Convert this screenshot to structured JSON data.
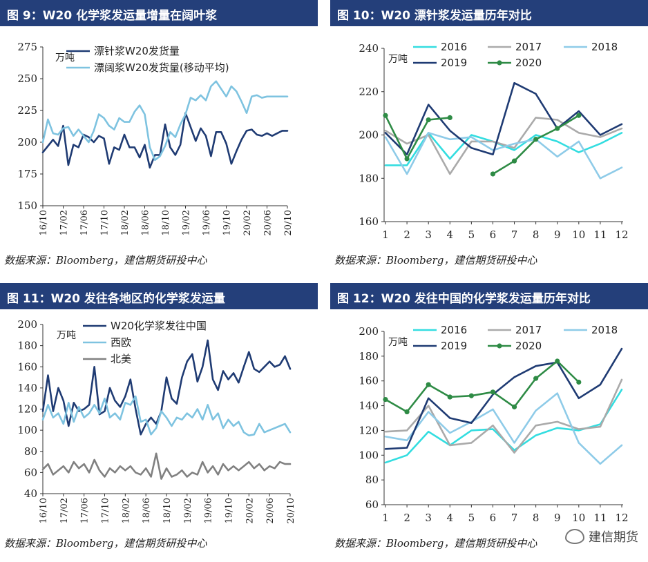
{
  "watermark": {
    "text": "建信期货",
    "icon": "wechat-icon"
  },
  "panels": [
    {
      "title": "图 9：W20 化学浆发运量增量在阔叶浆",
      "source": "数据来源：Bloomberg，建信期货研投中心",
      "chart_data": {
        "type": "line",
        "unit_label": "万吨",
        "ylim": [
          150,
          275
        ],
        "yticks": [
          150,
          175,
          200,
          225,
          250,
          275
        ],
        "x_tick_labels": [
          "16/10",
          "17/02",
          "17/06",
          "17/10",
          "18/02",
          "18/06",
          "18/10",
          "19/02",
          "19/06",
          "19/10",
          "20/02",
          "20/06",
          "20/10"
        ],
        "x_count": 49,
        "series": [
          {
            "name": "漂针浆W20发货量",
            "color": "#1f3b73",
            "values": [
              192,
              197,
              202,
              197,
              213,
              182,
              198,
              196,
              206,
              204,
              200,
              205,
              203,
              183,
              196,
              194,
              206,
              196,
              196,
              188,
              198,
              180,
              190,
              190,
              214,
              196,
              190,
              198,
              223,
              212,
              201,
              211,
              205,
              189,
              208,
              208,
              199,
              183,
              193,
              202,
              209,
              210,
              206,
              205,
              207,
              205,
              207,
              209,
              209
            ]
          },
          {
            "name": "漂阔浆W20发货量(移动平均)",
            "color": "#7ec3e0",
            "values": [
              200,
              218,
              207,
              206,
              211,
              212,
              205,
              210,
              205,
              200,
              209,
              222,
              219,
              213,
              210,
              219,
              216,
              216,
              224,
              229,
              222,
              196,
              186,
              189,
              197,
              208,
              204,
              214,
              222,
              235,
              233,
              237,
              233,
              244,
              248,
              242,
              236,
              244,
              240,
              232,
              223,
              236,
              237,
              235,
              236,
              236,
              236,
              236,
              236
            ]
          }
        ]
      }
    },
    {
      "title": "图 10：W20 漂针浆发运量历年对比",
      "source": "数据来源：Bloomberg，建信期货研投中心",
      "chart_data": {
        "type": "line",
        "unit_label": "万吨",
        "ylim": [
          160,
          240
        ],
        "yticks": [
          160,
          180,
          200,
          220,
          240
        ],
        "categories": [
          "1",
          "2",
          "3",
          "4",
          "5",
          "6",
          "7",
          "8",
          "9",
          "10",
          "11",
          "12"
        ],
        "series": [
          {
            "name": "2016",
            "color": "#33dde0",
            "values": [
              186,
              186,
              201,
              189,
              200,
              197,
              193,
              200,
              197,
              192,
              196,
              201
            ]
          },
          {
            "name": "2017",
            "color": "#aaaaaa",
            "values": [
              202,
              196,
              200,
              182,
              197,
              197,
              194,
              208,
              207,
              201,
              199,
              203
            ]
          },
          {
            "name": "2018",
            "color": "#8ecbe8",
            "values": [
              199,
              182,
              201,
              198,
              199,
              193,
              196,
              198,
              190,
              197,
              180,
              185
            ]
          },
          {
            "name": "2019",
            "color": "#1f3b73",
            "values": [
              201,
              191,
              214,
              202,
              194,
              191,
              224,
              219,
              203,
              211,
              200,
              205
            ]
          },
          {
            "name": "2020",
            "color": "#2e8b45",
            "values": [
              209,
              189,
              207,
              208,
              null,
              182,
              188,
              198,
              203,
              209,
              null,
              null
            ]
          }
        ]
      }
    },
    {
      "title": "图 11：W20 发往各地区的化学浆发运量",
      "source": "数据来源：Bloomberg，建信期货研投中心",
      "chart_data": {
        "type": "line",
        "unit_label": "万吨",
        "ylim": [
          40,
          200
        ],
        "yticks": [
          40,
          60,
          80,
          100,
          120,
          140,
          160,
          180,
          200
        ],
        "x_tick_labels": [
          "16/10",
          "17/02",
          "17/06",
          "17/10",
          "18/02",
          "18/06",
          "18/10",
          "19/02",
          "19/06",
          "19/10",
          "20/02",
          "20/06",
          "20/10"
        ],
        "x_count": 49,
        "series": [
          {
            "name": "W20化学浆发往中国",
            "color": "#1f3b73",
            "values": [
              118,
              152,
              118,
              140,
              128,
              104,
              126,
              118,
              120,
              124,
              160,
              115,
              118,
              140,
              128,
              122,
              132,
              148,
              120,
              96,
              106,
              112,
              106,
              118,
              150,
              130,
              125,
              150,
              165,
              172,
              146,
              160,
              185,
              148,
              138,
              156,
              148,
              154,
              145,
              160,
              174,
              158,
              155,
              160,
              165,
              160,
              162,
              170,
              158
            ]
          },
          {
            "name": "西欧",
            "color": "#7ec3e0",
            "values": [
              110,
              124,
              112,
              116,
              106,
              126,
              108,
              122,
              112,
              116,
              124,
              116,
              130,
              112,
              116,
              110,
              126,
              124,
              132,
              108,
              110,
              96,
              102,
              118,
              112,
              104,
              112,
              110,
              116,
              112,
              120,
              110,
              124,
              110,
              116,
              102,
              110,
              104,
              108,
              98,
              95,
              96,
              106,
              98,
              100,
              102,
              104,
              106,
              98
            ]
          },
          {
            "name": "北美",
            "color": "#808080",
            "values": [
              63,
              68,
              58,
              62,
              66,
              60,
              70,
              64,
              68,
              60,
              72,
              62,
              56,
              64,
              60,
              66,
              62,
              66,
              60,
              58,
              64,
              56,
              78,
              54,
              64,
              56,
              58,
              62,
              56,
              60,
              58,
              70,
              60,
              66,
              58,
              68,
              62,
              66,
              62,
              66,
              70,
              64,
              68,
              62,
              66,
              64,
              70,
              68,
              68
            ]
          }
        ]
      }
    },
    {
      "title": "图 12：W20 发往中国的化学浆发运量历年对比",
      "source": "数据来源：Bloomberg，建信期货研投中心",
      "chart_data": {
        "type": "line",
        "unit_label": "万吨",
        "ylim": [
          60,
          200
        ],
        "yticks": [
          60,
          80,
          100,
          120,
          140,
          160,
          180,
          200
        ],
        "categories": [
          "1",
          "2",
          "3",
          "4",
          "5",
          "6",
          "7",
          "8",
          "9",
          "10",
          "11",
          "12"
        ],
        "series": [
          {
            "name": "2016",
            "color": "#33dde0",
            "values": [
              94,
              100,
              119,
              108,
              120,
              121,
              104,
              116,
              122,
              120,
              125,
              153
            ]
          },
          {
            "name": "2017",
            "color": "#aaaaaa",
            "values": [
              119,
              120,
              140,
              108,
              110,
              124,
              102,
              124,
              127,
              121,
              123,
              161
            ]
          },
          {
            "name": "2018",
            "color": "#8ecbe8",
            "values": [
              115,
              112,
              135,
              118,
              127,
              137,
              110,
              136,
              150,
              110,
              93,
              108
            ]
          },
          {
            "name": "2019",
            "color": "#1f3b73",
            "values": [
              105,
              106,
              146,
              130,
              126,
              149,
              163,
              172,
              175,
              146,
              157,
              186
            ]
          },
          {
            "name": "2020",
            "color": "#2e8b45",
            "values": [
              145,
              135,
              157,
              147,
              148,
              151,
              139,
              162,
              176,
              159,
              null,
              null
            ]
          }
        ]
      }
    }
  ]
}
